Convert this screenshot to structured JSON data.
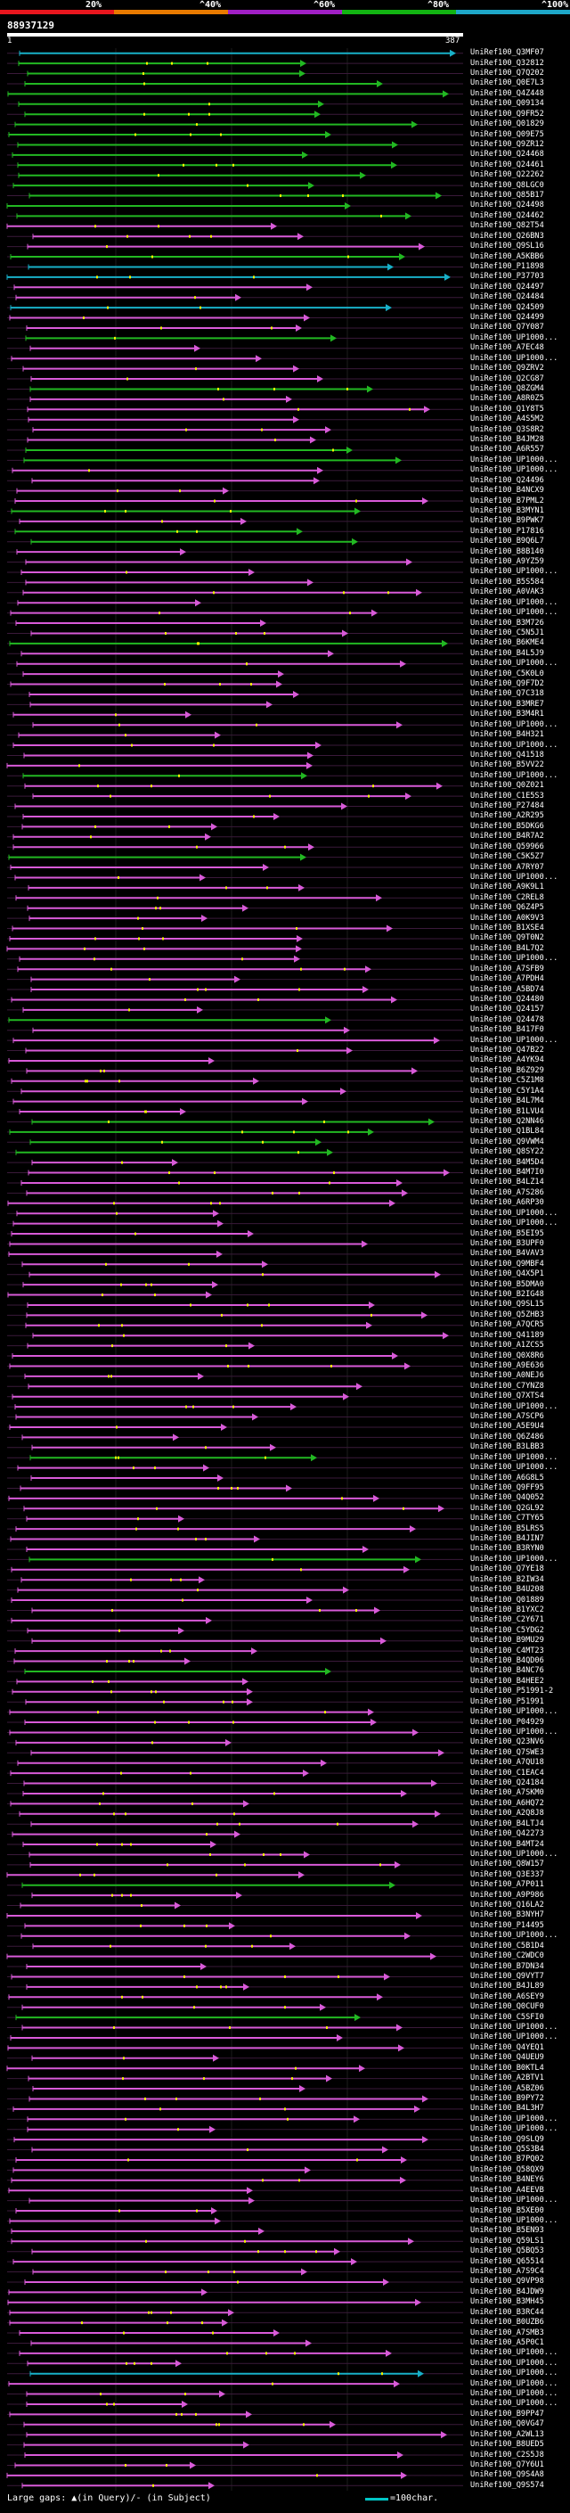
{
  "legend": {
    "labels": [
      "20%",
      "^40%",
      "^60%",
      "^80%",
      "^100%"
    ],
    "colors": [
      "#e8161e",
      "#e87a00",
      "#a01fc4",
      "#12b312",
      "#1ea7c8"
    ]
  },
  "query": {
    "id": "88937129",
    "start": "1",
    "end": "387"
  },
  "colors": {
    "pink": "#d85ad8",
    "green": "#22b822",
    "cyan": "#18b0c8",
    "gap": "#f2f200",
    "faint": "#3a1a3a"
  },
  "hits": [
    {
      "id": "UniRef100_Q3MF07",
      "c": "cyan"
    },
    {
      "id": "UniRef100_Q32812",
      "c": "green"
    },
    {
      "id": "UniRef100_Q7Q202",
      "c": "green"
    },
    {
      "id": "UniRef100_Q0E7L3",
      "c": "green"
    },
    {
      "id": "UniRef100_Q4Z448",
      "c": "green"
    },
    {
      "id": "UniRef100_Q09134",
      "c": "green"
    },
    {
      "id": "UniRef100_Q9FR52",
      "c": "green"
    },
    {
      "id": "UniRef100_Q01829",
      "c": "green"
    },
    {
      "id": "UniRef100_Q09E75",
      "c": "green"
    },
    {
      "id": "UniRef100_Q9ZR12",
      "c": "green"
    },
    {
      "id": "UniRef100_Q24468",
      "c": "green"
    },
    {
      "id": "UniRef100_Q24461",
      "c": "green"
    },
    {
      "id": "UniRef100_Q22262",
      "c": "green"
    },
    {
      "id": "UniRef100_Q8LGC0",
      "c": "green"
    },
    {
      "id": "UniRef100_Q85B17",
      "c": "green"
    },
    {
      "id": "UniRef100_Q24498",
      "c": "green"
    },
    {
      "id": "UniRef100_Q24462",
      "c": "green"
    },
    {
      "id": "UniRef100_Q82T54",
      "c": "pink"
    },
    {
      "id": "UniRef100_Q26BN3",
      "c": "pink"
    },
    {
      "id": "UniRef100_Q9SL16",
      "c": "pink"
    },
    {
      "id": "UniRef100_A5KBB6",
      "c": "green"
    },
    {
      "id": "UniRef100_P11898",
      "c": "cyan"
    },
    {
      "id": "UniRef100_P37703",
      "c": "cyan"
    },
    {
      "id": "UniRef100_Q24497",
      "c": "pink"
    },
    {
      "id": "UniRef100_Q24484",
      "c": "pink"
    },
    {
      "id": "UniRef100_Q24509",
      "c": "cyan"
    },
    {
      "id": "UniRef100_Q24499",
      "c": "pink"
    },
    {
      "id": "UniRef100_Q7Y087",
      "c": "pink"
    },
    {
      "id": "UniRef100_UP1000...",
      "c": "green"
    },
    {
      "id": "UniRef100_A7EC48",
      "c": "pink"
    },
    {
      "id": "UniRef100_UP1000...",
      "c": "pink"
    },
    {
      "id": "UniRef100_Q9ZRV2",
      "c": "pink"
    },
    {
      "id": "UniRef100_Q2CG87",
      "c": "pink"
    },
    {
      "id": "UniRef100_Q8ZGM4",
      "c": "green"
    },
    {
      "id": "UniRef100_A8R0Z5",
      "c": "pink"
    },
    {
      "id": "UniRef100_Q1Y8T5",
      "c": "pink"
    },
    {
      "id": "UniRef100_A4S5M2",
      "c": "pink"
    },
    {
      "id": "UniRef100_Q3S8R2",
      "c": "pink"
    },
    {
      "id": "UniRef100_B4JM28",
      "c": "pink"
    },
    {
      "id": "UniRef100_A6R557",
      "c": "green"
    },
    {
      "id": "UniRef100_UP1000...",
      "c": "green"
    },
    {
      "id": "UniRef100_UP1000...",
      "c": "pink"
    },
    {
      "id": "UniRef100_Q24496",
      "c": "pink"
    },
    {
      "id": "UniRef100_B4NCX9",
      "c": "pink"
    },
    {
      "id": "UniRef100_B7PML2",
      "c": "pink"
    },
    {
      "id": "UniRef100_B3MYN1",
      "c": "green"
    },
    {
      "id": "UniRef100_B9PWK7",
      "c": "pink"
    },
    {
      "id": "UniRef100_P17816",
      "c": "green"
    },
    {
      "id": "UniRef100_B9Q6L7",
      "c": "green"
    },
    {
      "id": "UniRef100_B8B140",
      "c": "pink"
    },
    {
      "id": "UniRef100_A9YZ59",
      "c": "pink"
    },
    {
      "id": "UniRef100_UP1000...",
      "c": "pink"
    },
    {
      "id": "UniRef100_B5S584",
      "c": "pink"
    },
    {
      "id": "UniRef100_A0VAK3",
      "c": "pink"
    },
    {
      "id": "UniRef100_UP1000...",
      "c": "pink"
    },
    {
      "id": "UniRef100_UP1000...",
      "c": "pink"
    },
    {
      "id": "UniRef100_B3M726",
      "c": "pink"
    },
    {
      "id": "UniRef100_C5N5J1",
      "c": "pink"
    },
    {
      "id": "UniRef100_B6KME4",
      "c": "green"
    },
    {
      "id": "UniRef100_B4L5J9",
      "c": "pink"
    },
    {
      "id": "UniRef100_UP1000...",
      "c": "pink"
    },
    {
      "id": "UniRef100_C5K0L0",
      "c": "pink"
    },
    {
      "id": "UniRef100_Q9F7D2",
      "c": "pink"
    },
    {
      "id": "UniRef100_Q7C318",
      "c": "pink"
    },
    {
      "id": "UniRef100_B3MRE7",
      "c": "pink"
    },
    {
      "id": "UniRef100_B3M4R1",
      "c": "pink"
    },
    {
      "id": "UniRef100_UP1000...",
      "c": "pink"
    },
    {
      "id": "UniRef100_B4H321",
      "c": "pink"
    },
    {
      "id": "UniRef100_UP1000...",
      "c": "pink"
    },
    {
      "id": "UniRef100_Q41518",
      "c": "pink"
    },
    {
      "id": "UniRef100_B5VV22",
      "c": "pink"
    },
    {
      "id": "UniRef100_UP1000...",
      "c": "green"
    },
    {
      "id": "UniRef100_Q0Z021",
      "c": "pink"
    },
    {
      "id": "UniRef100_C1E5S3",
      "c": "pink"
    },
    {
      "id": "UniRef100_P27484",
      "c": "pink"
    },
    {
      "id": "UniRef100_A2R295",
      "c": "pink"
    },
    {
      "id": "UniRef100_B5DKG6",
      "c": "pink"
    },
    {
      "id": "UniRef100_B4R7A2",
      "c": "pink"
    },
    {
      "id": "UniRef100_Q59966",
      "c": "pink"
    },
    {
      "id": "UniRef100_C5K5Z7",
      "c": "green"
    },
    {
      "id": "UniRef100_A7RY07",
      "c": "pink"
    },
    {
      "id": "UniRef100_UP1000...",
      "c": "pink"
    },
    {
      "id": "UniRef100_A9K9L1",
      "c": "pink"
    },
    {
      "id": "UniRef100_C2REL8",
      "c": "pink"
    },
    {
      "id": "UniRef100_Q6Z4P5",
      "c": "pink"
    },
    {
      "id": "UniRef100_A0K9V3",
      "c": "pink"
    },
    {
      "id": "UniRef100_B1XSE4",
      "c": "pink"
    },
    {
      "id": "UniRef100_Q9T0N2",
      "c": "pink"
    },
    {
      "id": "UniRef100_B4L7Q2",
      "c": "pink"
    },
    {
      "id": "UniRef100_UP1000...",
      "c": "pink"
    },
    {
      "id": "UniRef100_A7SFB9",
      "c": "pink"
    },
    {
      "id": "UniRef100_A7PDH4",
      "c": "pink"
    },
    {
      "id": "UniRef100_A5BD74",
      "c": "pink"
    },
    {
      "id": "UniRef100_Q24480",
      "c": "pink"
    },
    {
      "id": "UniRef100_Q24157",
      "c": "pink"
    },
    {
      "id": "UniRef100_Q24478",
      "c": "green"
    },
    {
      "id": "UniRef100_B417F0",
      "c": "pink"
    },
    {
      "id": "UniRef100_UP1000...",
      "c": "pink"
    },
    {
      "id": "UniRef100_Q47B22",
      "c": "pink"
    },
    {
      "id": "UniRef100_A4YK94",
      "c": "pink"
    },
    {
      "id": "UniRef100_B6Z929",
      "c": "pink"
    },
    {
      "id": "UniRef100_C5Z1M8",
      "c": "pink"
    },
    {
      "id": "UniRef100_C5Y1A4",
      "c": "pink"
    },
    {
      "id": "UniRef100_B4L7M4",
      "c": "pink"
    },
    {
      "id": "UniRef100_B1LVU4",
      "c": "pink"
    },
    {
      "id": "UniRef100_Q2NN46",
      "c": "green"
    },
    {
      "id": "UniRef100_Q1BL84",
      "c": "green"
    },
    {
      "id": "UniRef100_Q9VWM4",
      "c": "green"
    },
    {
      "id": "UniRef100_Q8SY22",
      "c": "green"
    },
    {
      "id": "UniRef100_B4M5D4",
      "c": "pink"
    },
    {
      "id": "UniRef100_B4M7I0",
      "c": "pink"
    },
    {
      "id": "UniRef100_B4LZ14",
      "c": "pink"
    },
    {
      "id": "UniRef100_A7S286",
      "c": "pink"
    },
    {
      "id": "UniRef100_A6RP30",
      "c": "pink"
    },
    {
      "id": "UniRef100_UP1000...",
      "c": "pink"
    },
    {
      "id": "UniRef100_UP1000...",
      "c": "pink"
    },
    {
      "id": "UniRef100_B5EI95",
      "c": "pink"
    },
    {
      "id": "UniRef100_B3UPF0",
      "c": "pink"
    },
    {
      "id": "UniRef100_B4VAV3",
      "c": "pink"
    },
    {
      "id": "UniRef100_Q9MBF4",
      "c": "pink"
    },
    {
      "id": "UniRef100_Q4X5P1",
      "c": "pink"
    },
    {
      "id": "UniRef100_B5DMA0",
      "c": "pink"
    },
    {
      "id": "UniRef100_B2IG48",
      "c": "pink"
    },
    {
      "id": "UniRef100_Q9SL15",
      "c": "pink"
    },
    {
      "id": "UniRef100_Q5ZHB3",
      "c": "pink"
    },
    {
      "id": "UniRef100_A7QCR5",
      "c": "pink"
    },
    {
      "id": "UniRef100_Q41189",
      "c": "pink"
    },
    {
      "id": "UniRef100_A1ZCS5",
      "c": "pink"
    },
    {
      "id": "UniRef100_Q0X8R6",
      "c": "pink"
    },
    {
      "id": "UniRef100_A9E636",
      "c": "pink"
    },
    {
      "id": "UniRef100_A0NEJ6",
      "c": "pink"
    },
    {
      "id": "UniRef100_C7YNZ8",
      "c": "pink"
    },
    {
      "id": "UniRef100_Q7XTS4",
      "c": "pink"
    },
    {
      "id": "UniRef100_UP1000...",
      "c": "pink"
    },
    {
      "id": "UniRef100_A7SCP6",
      "c": "pink"
    },
    {
      "id": "UniRef100_A5E9U4",
      "c": "pink"
    },
    {
      "id": "UniRef100_Q6Z486",
      "c": "pink"
    },
    {
      "id": "UniRef100_B3LBB3",
      "c": "pink"
    },
    {
      "id": "UniRef100_UP1000...",
      "c": "green"
    },
    {
      "id": "UniRef100_UP1000...",
      "c": "pink"
    },
    {
      "id": "UniRef100_A6G8L5",
      "c": "pink"
    },
    {
      "id": "UniRef100_Q9FF95",
      "c": "pink"
    },
    {
      "id": "UniRef100_Q4Q052",
      "c": "pink"
    },
    {
      "id": "UniRef100_Q2GL92",
      "c": "pink"
    },
    {
      "id": "UniRef100_C7TY65",
      "c": "pink"
    },
    {
      "id": "UniRef100_B5LRS5",
      "c": "pink"
    },
    {
      "id": "UniRef100_B4JIN7",
      "c": "pink"
    },
    {
      "id": "UniRef100_B3RYN0",
      "c": "pink"
    },
    {
      "id": "UniRef100_UP1000...",
      "c": "green"
    },
    {
      "id": "UniRef100_Q7YE18",
      "c": "pink"
    },
    {
      "id": "UniRef100_B2IW34",
      "c": "pink"
    },
    {
      "id": "UniRef100_B4U208",
      "c": "pink"
    },
    {
      "id": "UniRef100_Q01889",
      "c": "pink"
    },
    {
      "id": "UniRef100_B1YXC2",
      "c": "pink"
    },
    {
      "id": "UniRef100_C2Y671",
      "c": "pink"
    },
    {
      "id": "UniRef100_C5YDG2",
      "c": "pink"
    },
    {
      "id": "UniRef100_B9MU29",
      "c": "pink"
    },
    {
      "id": "UniRef100_C4MT23",
      "c": "pink"
    },
    {
      "id": "UniRef100_B4QD06",
      "c": "pink"
    },
    {
      "id": "UniRef100_B4NC76",
      "c": "green"
    },
    {
      "id": "UniRef100_B4HEE2",
      "c": "pink"
    },
    {
      "id": "UniRef100_P51991-2",
      "c": "pink"
    },
    {
      "id": "UniRef100_P51991",
      "c": "pink"
    },
    {
      "id": "UniRef100_UP1000...",
      "c": "pink"
    },
    {
      "id": "UniRef100_P04929",
      "c": "pink"
    },
    {
      "id": "UniRef100_UP1000...",
      "c": "pink"
    },
    {
      "id": "UniRef100_Q23NV6",
      "c": "pink"
    },
    {
      "id": "UniRef100_Q7SWE3",
      "c": "pink"
    },
    {
      "id": "UniRef100_A7QU18",
      "c": "pink"
    },
    {
      "id": "UniRef100_C1EAC4",
      "c": "pink"
    },
    {
      "id": "UniRef100_Q24184",
      "c": "pink"
    },
    {
      "id": "UniRef100_A7SKM0",
      "c": "pink"
    },
    {
      "id": "UniRef100_A6HQ72",
      "c": "pink"
    },
    {
      "id": "UniRef100_A2Q8J8",
      "c": "pink"
    },
    {
      "id": "UniRef100_B4LTJ4",
      "c": "pink"
    },
    {
      "id": "UniRef100_Q42273",
      "c": "pink"
    },
    {
      "id": "UniRef100_B4MT24",
      "c": "pink"
    },
    {
      "id": "UniRef100_UP1000...",
      "c": "pink"
    },
    {
      "id": "UniRef100_Q8W157",
      "c": "pink"
    },
    {
      "id": "UniRef100_Q3E337",
      "c": "pink"
    },
    {
      "id": "UniRef100_A7P011",
      "c": "green"
    },
    {
      "id": "UniRef100_A9P986",
      "c": "pink"
    },
    {
      "id": "UniRef100_Q16LA2",
      "c": "pink"
    },
    {
      "id": "UniRef100_B3NYH7",
      "c": "pink"
    },
    {
      "id": "UniRef100_P14495",
      "c": "pink"
    },
    {
      "id": "UniRef100_UP1000...",
      "c": "pink"
    },
    {
      "id": "UniRef100_C5B1D4",
      "c": "pink"
    },
    {
      "id": "UniRef100_C2WDC0",
      "c": "pink"
    },
    {
      "id": "UniRef100_B7DN34",
      "c": "pink"
    },
    {
      "id": "UniRef100_Q9VYT7",
      "c": "pink"
    },
    {
      "id": "UniRef100_B4JL89",
      "c": "pink"
    },
    {
      "id": "UniRef100_A6SEY9",
      "c": "pink"
    },
    {
      "id": "UniRef100_Q0CUF0",
      "c": "pink"
    },
    {
      "id": "UniRef100_C5SFI0",
      "c": "green"
    },
    {
      "id": "UniRef100_UP1000...",
      "c": "pink"
    },
    {
      "id": "UniRef100_UP1000...",
      "c": "pink"
    },
    {
      "id": "UniRef100_Q4YEQ1",
      "c": "pink"
    },
    {
      "id": "UniRef100_Q4UEU9",
      "c": "pink"
    },
    {
      "id": "UniRef100_B0KTL4",
      "c": "pink"
    },
    {
      "id": "UniRef100_A2BTV1",
      "c": "pink"
    },
    {
      "id": "UniRef100_A5BZ06",
      "c": "pink"
    },
    {
      "id": "UniRef100_B9PY72",
      "c": "pink"
    },
    {
      "id": "UniRef100_B4L3H7",
      "c": "pink"
    },
    {
      "id": "UniRef100_UP1000...",
      "c": "pink"
    },
    {
      "id": "UniRef100_UP1000...",
      "c": "pink"
    },
    {
      "id": "UniRef100_Q9SLQ9",
      "c": "pink"
    },
    {
      "id": "UniRef100_Q5S3B4",
      "c": "pink"
    },
    {
      "id": "UniRef100_B7PQ02",
      "c": "pink"
    },
    {
      "id": "UniRef100_Q58QX9",
      "c": "pink"
    },
    {
      "id": "UniRef100_B4NEY6",
      "c": "pink"
    },
    {
      "id": "UniRef100_A4EEVB",
      "c": "pink"
    },
    {
      "id": "UniRef100_UP1000...",
      "c": "pink"
    },
    {
      "id": "UniRef100_B5XE00",
      "c": "pink"
    },
    {
      "id": "UniRef100_UP1000...",
      "c": "pink"
    },
    {
      "id": "UniRef100_B5EN93",
      "c": "pink"
    },
    {
      "id": "UniRef100_Q59LS1",
      "c": "pink"
    },
    {
      "id": "UniRef100_Q5BQ53",
      "c": "pink"
    },
    {
      "id": "UniRef100_Q65514",
      "c": "pink"
    },
    {
      "id": "UniRef100_A7S9C4",
      "c": "pink"
    },
    {
      "id": "UniRef100_Q9VP98",
      "c": "pink"
    },
    {
      "id": "UniRef100_B4JDW9",
      "c": "pink"
    },
    {
      "id": "UniRef100_B3MH45",
      "c": "pink"
    },
    {
      "id": "UniRef100_B3RC44",
      "c": "pink"
    },
    {
      "id": "UniRef100_B0UZB6",
      "c": "pink"
    },
    {
      "id": "UniRef100_A7SMB3",
      "c": "pink"
    },
    {
      "id": "UniRef100_A5P0C1",
      "c": "pink"
    },
    {
      "id": "UniRef100_UP1000...",
      "c": "pink"
    },
    {
      "id": "UniRef100_UP1000...",
      "c": "pink"
    },
    {
      "id": "UniRef100_UP1000...",
      "c": "cyan"
    },
    {
      "id": "UniRef100_UP1000...",
      "c": "pink"
    },
    {
      "id": "UniRef100_UP1000...",
      "c": "pink"
    },
    {
      "id": "UniRef100_UP1000...",
      "c": "pink"
    },
    {
      "id": "UniRef100_B9PP47",
      "c": "pink"
    },
    {
      "id": "UniRef100_Q0VG47",
      "c": "pink"
    },
    {
      "id": "UniRef100_A2WL13",
      "c": "pink"
    },
    {
      "id": "UniRef100_B8UED5",
      "c": "pink"
    },
    {
      "id": "UniRef100_C2S5J8",
      "c": "pink"
    },
    {
      "id": "UniRef100_Q7Y6U1",
      "c": "pink"
    },
    {
      "id": "UniRef100_Q9S4A8",
      "c": "pink"
    },
    {
      "id": "UniRef100_Q9S574",
      "c": "pink"
    }
  ],
  "footer": {
    "text": "Large gaps: ▲(in Query)/- (in Subject)",
    "scale": "=100char."
  }
}
